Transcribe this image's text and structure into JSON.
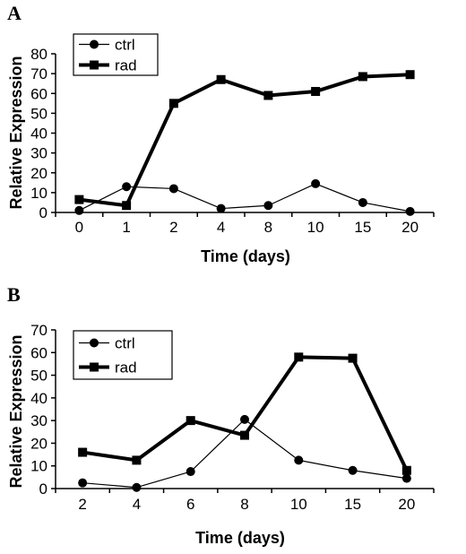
{
  "chart_data": [
    {
      "type": "line",
      "panel_label": "A",
      "categories": [
        "0",
        "1",
        "2",
        "4",
        "8",
        "10",
        "15",
        "20"
      ],
      "series": [
        {
          "name": "ctrl",
          "values": [
            1,
            13,
            12,
            2,
            3.5,
            14.5,
            5,
            0.5
          ],
          "marker": "circle",
          "line_width": "thin"
        },
        {
          "name": "rad",
          "values": [
            6.5,
            3.5,
            55,
            67,
            59,
            61,
            68.5,
            69.5
          ],
          "marker": "square",
          "line_width": "thick"
        }
      ],
      "xlabel": "Time (days)",
      "ylabel": "Relative Expression",
      "ylim": [
        0,
        80
      ],
      "yticks": [
        "0",
        "10",
        "20",
        "30",
        "40",
        "50",
        "60",
        "70",
        "80"
      ],
      "legend_placement": "top-left",
      "grid": false
    },
    {
      "type": "line",
      "panel_label": "B",
      "categories": [
        "2",
        "4",
        "6",
        "8",
        "10",
        "15",
        "20"
      ],
      "series": [
        {
          "name": "ctrl",
          "values": [
            2.5,
            0.5,
            7.5,
            30.5,
            12.5,
            8,
            4.5
          ],
          "marker": "circle",
          "line_width": "thin"
        },
        {
          "name": "rad",
          "values": [
            16,
            12.5,
            30,
            23.5,
            58,
            57.5,
            8
          ],
          "marker": "square",
          "line_width": "thick"
        }
      ],
      "xlabel": "Time (days)",
      "ylabel": "Relative Expression",
      "ylim": [
        0,
        70
      ],
      "yticks": [
        "0",
        "10",
        "20",
        "30",
        "40",
        "50",
        "60",
        "70"
      ],
      "legend_placement": "top-left",
      "grid": false
    }
  ]
}
